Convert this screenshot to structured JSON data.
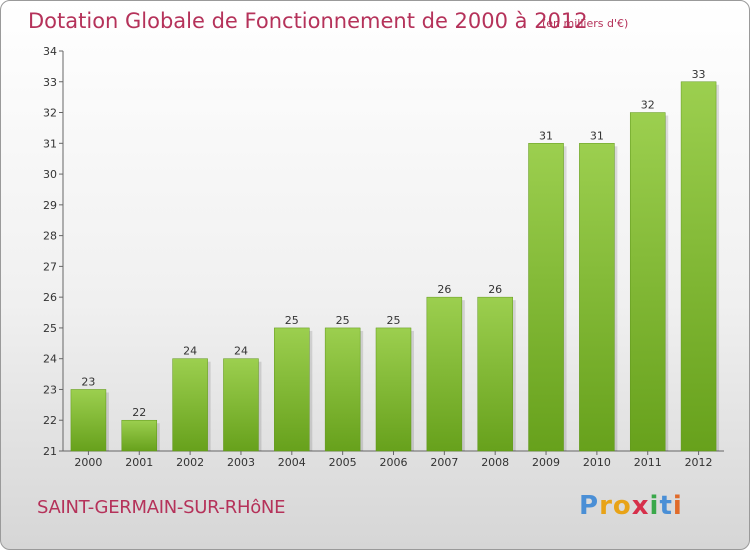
{
  "title": "Dotation Globale de Fonctionnement de 2000 à 2012",
  "unit_note": "(en milliers d'€)",
  "commune": "SAINT-GERMAIN-SUR-RHôNE",
  "logo": {
    "letters": [
      "P",
      "r",
      "o",
      "x",
      "i",
      "t",
      "i"
    ],
    "colors": [
      "#4a8fd6",
      "#e8a317",
      "#e8a317",
      "#d62f4a",
      "#3aa84a",
      "#4a8fd6",
      "#e06b2a"
    ]
  },
  "chart_data": {
    "type": "bar",
    "categories": [
      "2000",
      "2001",
      "2002",
      "2003",
      "2004",
      "2005",
      "2006",
      "2007",
      "2008",
      "2009",
      "2010",
      "2011",
      "2012"
    ],
    "values": [
      23,
      22,
      24,
      24,
      25,
      25,
      25,
      26,
      26,
      31,
      31,
      32,
      33
    ],
    "ylim": [
      21,
      34
    ],
    "yticks": [
      21,
      22,
      23,
      24,
      25,
      26,
      27,
      28,
      29,
      30,
      31,
      32,
      33,
      34
    ],
    "grid": false,
    "bar_color_top": "#9ccf4f",
    "bar_color_bottom": "#67a11c"
  }
}
